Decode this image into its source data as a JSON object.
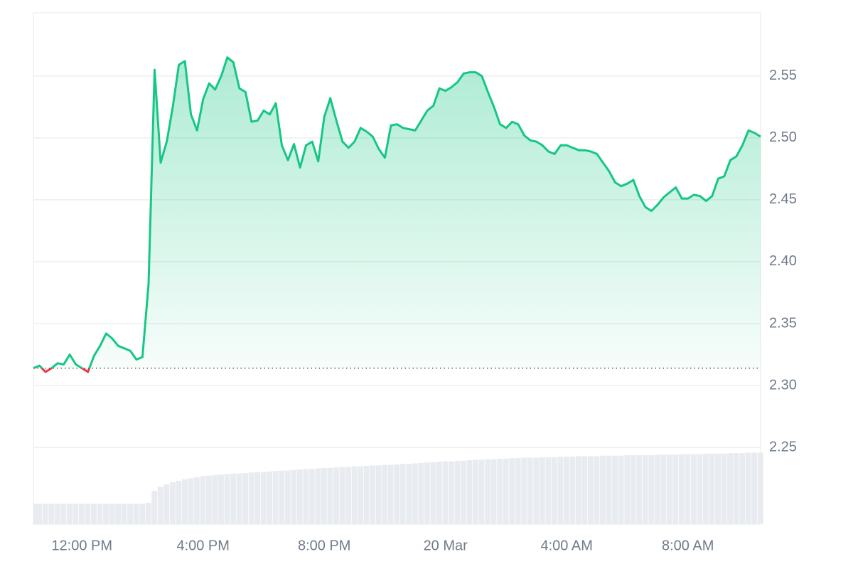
{
  "chart_data": {
    "type": "line",
    "x": [
      10.4,
      10.6,
      10.8,
      11.0,
      11.2,
      11.4,
      11.6,
      11.8,
      12.0,
      12.2,
      12.4,
      12.6,
      12.8,
      13.0,
      13.2,
      13.4,
      13.6,
      13.8,
      14.0,
      14.2,
      14.4,
      14.6,
      14.8,
      15.0,
      15.2,
      15.4,
      15.6,
      15.8,
      16.0,
      16.2,
      16.4,
      16.6,
      16.8,
      17.0,
      17.2,
      17.4,
      17.6,
      17.8,
      18.0,
      18.2,
      18.4,
      18.6,
      18.8,
      19.0,
      19.2,
      19.4,
      19.6,
      19.8,
      20.0,
      20.2,
      20.4,
      20.6,
      20.8,
      21.0,
      21.2,
      21.4,
      21.6,
      21.8,
      22.0,
      22.2,
      22.4,
      22.6,
      22.8,
      23.0,
      23.2,
      23.4,
      23.6,
      23.8,
      24.0,
      24.2,
      24.4,
      24.6,
      24.8,
      25.0,
      25.2,
      25.4,
      25.6,
      25.8,
      26.0,
      26.2,
      26.4,
      26.6,
      26.8,
      27.0,
      27.2,
      27.4,
      27.6,
      27.8,
      28.0,
      28.2,
      28.4,
      28.6,
      28.8,
      29.0,
      29.2,
      29.4,
      29.6,
      29.8,
      30.0,
      30.2,
      30.4,
      30.6,
      30.8,
      31.0,
      31.2,
      31.4,
      31.6,
      31.8,
      32.0,
      32.2,
      32.4,
      32.6,
      32.8,
      33.0,
      33.2,
      33.4,
      33.6,
      33.8,
      34.0,
      34.2,
      34.4
    ],
    "values": [
      2.314,
      2.316,
      2.311,
      2.314,
      2.318,
      2.317,
      2.325,
      2.317,
      2.314,
      2.311,
      2.324,
      2.332,
      2.342,
      2.338,
      2.332,
      2.33,
      2.328,
      2.321,
      2.323,
      2.382,
      2.555,
      2.48,
      2.497,
      2.525,
      2.559,
      2.562,
      2.519,
      2.506,
      2.531,
      2.544,
      2.539,
      2.55,
      2.565,
      2.561,
      2.54,
      2.537,
      2.513,
      2.514,
      2.522,
      2.519,
      2.528,
      2.494,
      2.482,
      2.495,
      2.476,
      2.494,
      2.497,
      2.481,
      2.517,
      2.532,
      2.514,
      2.497,
      2.492,
      2.497,
      2.508,
      2.505,
      2.501,
      2.491,
      2.484,
      2.51,
      2.511,
      2.508,
      2.507,
      2.506,
      2.514,
      2.522,
      2.526,
      2.54,
      2.538,
      2.541,
      2.545,
      2.552,
      2.553,
      2.553,
      2.55,
      2.537,
      2.525,
      2.511,
      2.508,
      2.513,
      2.511,
      2.502,
      2.498,
      2.497,
      2.494,
      2.489,
      2.487,
      2.494,
      2.494,
      2.492,
      2.49,
      2.49,
      2.489,
      2.487,
      2.48,
      2.473,
      2.464,
      2.461,
      2.463,
      2.466,
      2.453,
      2.444,
      2.441,
      2.446,
      2.452,
      2.456,
      2.46,
      2.451,
      2.451,
      2.454,
      2.453,
      2.449,
      2.453,
      2.467,
      2.469,
      2.482,
      2.485,
      2.494,
      2.506,
      2.504,
      2.501
    ],
    "color": "#16c784",
    "down_color": "#ea3943",
    "baseline": 2.314,
    "volume": {
      "color": "#e8ecf1",
      "values": [
        4.0,
        4.0,
        4.0,
        4.0,
        4.0,
        4.0,
        4.0,
        4.0,
        4.0,
        4.0,
        4.0,
        4.0,
        4.0,
        4.0,
        4.0,
        4.0,
        4.0,
        4.0,
        4.0,
        4.2,
        6.5,
        7.3,
        7.8,
        8.2,
        8.5,
        8.8,
        9.0,
        9.2,
        9.4,
        9.5,
        9.6,
        9.7,
        9.8,
        9.9,
        9.9,
        10.0,
        10.1,
        10.2,
        10.2,
        10.3,
        10.4,
        10.5,
        10.5,
        10.6,
        10.7,
        10.8,
        10.8,
        10.9,
        11.0,
        11.0,
        11.1,
        11.2,
        11.2,
        11.3,
        11.3,
        11.4,
        11.5,
        11.5,
        11.6,
        11.6,
        11.7,
        11.8,
        11.8,
        11.9,
        12.0,
        12.1,
        12.1,
        12.2,
        12.3,
        12.3,
        12.4,
        12.4,
        12.5,
        12.6,
        12.6,
        12.7,
        12.7,
        12.8,
        12.8,
        12.9,
        12.9,
        13.0,
        13.0,
        13.0,
        13.1,
        13.1,
        13.1,
        13.2,
        13.2,
        13.2,
        13.3,
        13.3,
        13.3,
        13.3,
        13.4,
        13.4,
        13.4,
        13.4,
        13.5,
        13.5,
        13.5,
        13.5,
        13.5,
        13.6,
        13.6,
        13.6,
        13.6,
        13.7,
        13.7,
        13.7,
        13.7,
        13.8,
        13.8,
        13.8,
        13.8,
        13.9,
        13.9,
        13.9,
        14.0,
        14.0,
        14.0
      ]
    },
    "y2lim": [
      0,
      100
    ],
    "xlim": [
      10.4,
      34.4
    ],
    "xticks": [
      {
        "value": 12,
        "label": "12:00 PM"
      },
      {
        "value": 16,
        "label": "4:00 PM"
      },
      {
        "value": 20,
        "label": "8:00 PM"
      },
      {
        "value": 24,
        "label": "20 Mar"
      },
      {
        "value": 28,
        "label": "4:00 AM"
      },
      {
        "value": 32,
        "label": "8:00 AM"
      }
    ],
    "ylim": [
      2.188,
      2.601
    ],
    "yticks": [
      2.25,
      {
        "value": 2.3,
        "label": "2.30"
      },
      2.35,
      {
        "value": 2.4,
        "label": "2.40"
      },
      2.45,
      {
        "value": 2.5,
        "label": "2.50"
      },
      2.55
    ],
    "grid": true
  }
}
